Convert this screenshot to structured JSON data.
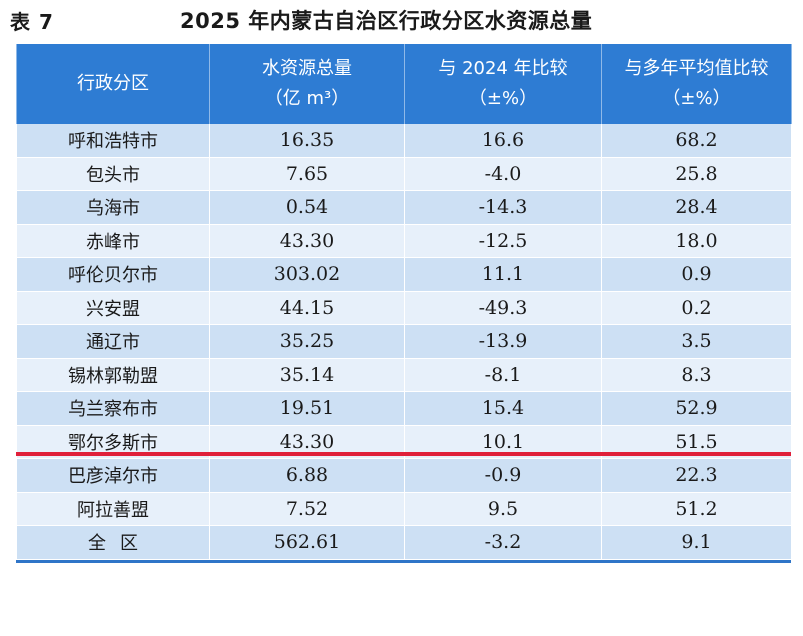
{
  "title": {
    "table_no": "表 7",
    "text": "2025 年内蒙古自治区行政分区水资源总量"
  },
  "headers": [
    {
      "line1": "行政分区",
      "line2": ""
    },
    {
      "line1": "水资源总量",
      "line2": "（亿 m³）"
    },
    {
      "line1": "与 2024 年比较",
      "line2": "（±%）"
    },
    {
      "line1": "与多年平均值比较",
      "line2": "（±%）"
    }
  ],
  "rows": [
    {
      "region": "呼和浩特市",
      "total": "16.35",
      "vs_2024": "16.6",
      "vs_avg": "68.2"
    },
    {
      "region": "包头市",
      "total": "7.65",
      "vs_2024": "-4.0",
      "vs_avg": "25.8"
    },
    {
      "region": "乌海市",
      "total": "0.54",
      "vs_2024": "-14.3",
      "vs_avg": "28.4"
    },
    {
      "region": "赤峰市",
      "total": "43.30",
      "vs_2024": "-12.5",
      "vs_avg": "18.0"
    },
    {
      "region": "呼伦贝尔市",
      "total": "303.02",
      "vs_2024": "11.1",
      "vs_avg": "0.9"
    },
    {
      "region": "兴安盟",
      "total": "44.15",
      "vs_2024": "-49.3",
      "vs_avg": "0.2"
    },
    {
      "region": "通辽市",
      "total": "35.25",
      "vs_2024": "-13.9",
      "vs_avg": "3.5"
    },
    {
      "region": "锡林郭勒盟",
      "total": "35.14",
      "vs_2024": "-8.1",
      "vs_avg": "8.3"
    },
    {
      "region": "乌兰察布市",
      "total": "19.51",
      "vs_2024": "15.4",
      "vs_avg": "52.9"
    },
    {
      "region": "鄂尔多斯市",
      "total": "43.30",
      "vs_2024": "10.1",
      "vs_avg": "51.5"
    },
    {
      "region": "巴彦淖尔市",
      "total": "6.88",
      "vs_2024": "-0.9",
      "vs_avg": "22.3"
    },
    {
      "region": "阿拉善盟",
      "total": "7.52",
      "vs_2024": "9.5",
      "vs_avg": "51.2"
    },
    {
      "region": "全区",
      "total": "562.61",
      "vs_2024": "-3.2",
      "vs_avg": "9.1"
    }
  ],
  "colors": {
    "header_bg": "#2e7cd3",
    "row_light": "#e7f0fa",
    "row_dark": "#cde0f4",
    "divider_red": "#e0203a"
  }
}
